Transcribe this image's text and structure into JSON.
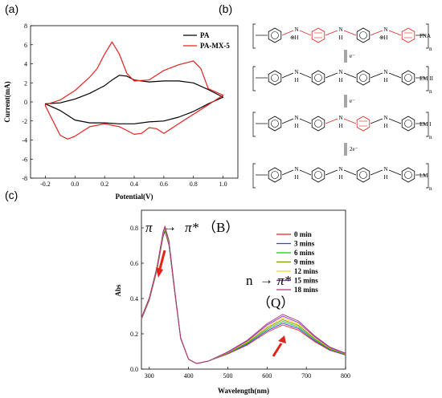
{
  "panel_labels": {
    "a": "(a)",
    "b": "(b)",
    "c": "(c)"
  },
  "colors": {
    "black": "#000000",
    "red": "#e8201e",
    "accent_arrow": "#e3231e"
  },
  "chart_data": [
    {
      "panel": "a",
      "type": "line",
      "xlabel": "Potential(V)",
      "ylabel": "Current(mA)",
      "xlim": [
        -0.3,
        1.1
      ],
      "ylim": [
        -8,
        8
      ],
      "xticks": [
        -0.2,
        0.0,
        0.2,
        0.4,
        0.6,
        0.8,
        1.0
      ],
      "xticklabels": [
        "-0.2",
        "0.0",
        "0.2",
        "0.4",
        "0.6",
        "0.8",
        "1.0"
      ],
      "yticks": [
        -8,
        -6,
        -4,
        -2,
        0,
        2,
        4,
        6,
        8
      ],
      "yticklabels": [
        "-8",
        "-6",
        "-4",
        "-2",
        "0",
        "2",
        "4",
        "6",
        "8"
      ],
      "legend_position": "top-right",
      "series": [
        {
          "name": "PA",
          "color": "#000000",
          "x": [
            -0.2,
            -0.1,
            0.0,
            0.1,
            0.2,
            0.25,
            0.3,
            0.35,
            0.4,
            0.5,
            0.6,
            0.7,
            0.8,
            0.9,
            1.0,
            0.9,
            0.8,
            0.7,
            0.6,
            0.5,
            0.4,
            0.3,
            0.2,
            0.1,
            0.0,
            -0.1,
            -0.2
          ],
          "y": [
            -0.2,
            -0.1,
            0.3,
            0.9,
            1.7,
            2.3,
            2.8,
            2.7,
            2.3,
            2.1,
            2.2,
            2.2,
            2.0,
            1.3,
            0.5,
            -0.2,
            -1.0,
            -1.6,
            -2.0,
            -2.1,
            -2.3,
            -2.3,
            -2.2,
            -2.2,
            -1.9,
            -0.9,
            -0.2
          ]
        },
        {
          "name": "PA-MX-5",
          "color": "#e8201e",
          "x": [
            -0.2,
            -0.1,
            0.0,
            0.1,
            0.15,
            0.2,
            0.25,
            0.3,
            0.35,
            0.4,
            0.5,
            0.6,
            0.7,
            0.75,
            0.8,
            0.85,
            0.9,
            1.0,
            0.9,
            0.8,
            0.7,
            0.65,
            0.6,
            0.55,
            0.5,
            0.45,
            0.4,
            0.3,
            0.2,
            0.1,
            0.0,
            -0.05,
            -0.1,
            -0.2
          ],
          "y": [
            -0.3,
            0.2,
            1.2,
            2.6,
            3.5,
            5.0,
            6.3,
            5.0,
            3.0,
            2.2,
            2.3,
            3.3,
            3.9,
            4.1,
            4.3,
            3.5,
            1.4,
            0.7,
            -0.3,
            -1.3,
            -2.3,
            -2.8,
            -3.3,
            -2.8,
            -2.7,
            -3.3,
            -3.4,
            -2.6,
            -2.3,
            -2.6,
            -3.6,
            -3.9,
            -3.5,
            -0.4
          ]
        }
      ]
    },
    {
      "panel": "c",
      "type": "line",
      "xlabel": "Wavelength(nm)",
      "ylabel": "Abs",
      "xlim": [
        280,
        800
      ],
      "ylim": [
        0.0,
        0.9
      ],
      "xticks": [
        300,
        400,
        500,
        600,
        700,
        800
      ],
      "xticklabels": [
        "300",
        "400",
        "500",
        "600",
        "700",
        "800"
      ],
      "yticks": [
        0.0,
        0.2,
        0.4,
        0.6,
        0.8
      ],
      "yticklabels": [
        "0.0",
        "0.2",
        "0.4",
        "0.6",
        "0.8"
      ],
      "legend_position": "top-right",
      "annotations": {
        "pi_b": {
          "left": "π",
          "arrow": "→",
          "right": "π*",
          "paren": "（B）"
        },
        "n_q": {
          "left": "n",
          "arrow": "→",
          "right": "π*",
          "paren": "（Q）"
        }
      },
      "series": [
        {
          "name": "0 min",
          "color": "#e8201e",
          "peak1": 0.78,
          "peak2": 0.25
        },
        {
          "name": "3 mins",
          "color": "#3a3aff",
          "peak1": 0.785,
          "peak2": 0.26
        },
        {
          "name": "6 mins",
          "color": "#15c515",
          "peak1": 0.79,
          "peak2": 0.27
        },
        {
          "name": "9 mins",
          "color": "#8b8b00",
          "peak1": 0.795,
          "peak2": 0.28
        },
        {
          "name": "12 mins",
          "color": "#e8d81a",
          "peak1": 0.8,
          "peak2": 0.29
        },
        {
          "name": "15 mins",
          "color": "#8a2be2",
          "peak1": 0.805,
          "peak2": 0.3
        },
        {
          "name": "18 mins",
          "color": "#b0307a",
          "peak1": 0.81,
          "peak2": 0.31
        }
      ],
      "shape": {
        "x": [
          280,
          300,
          320,
          335,
          340,
          350,
          365,
          380,
          400,
          420,
          450,
          500,
          550,
          600,
          640,
          680,
          720,
          760,
          800
        ],
        "base": [
          0.36,
          0.5,
          0.72,
          0.96,
          1.0,
          0.9,
          0.55,
          0.22,
          0.07,
          0.04,
          0.04,
          0.06,
          0.1,
          0.14,
          0.16,
          0.13,
          0.08,
          0.05,
          0.03
        ],
        "peak2_idx": [
          11,
          12,
          13,
          14,
          15,
          16,
          17,
          18
        ],
        "peak2_w": [
          0.2,
          0.45,
          0.8,
          1.0,
          0.86,
          0.55,
          0.3,
          0.17
        ]
      }
    }
  ],
  "structures": {
    "rows": [
      {
        "label": "PNA"
      },
      {
        "label": "EM II"
      },
      {
        "label": "EM I"
      },
      {
        "label": "LM"
      }
    ],
    "arrows": [
      "e⁻",
      "e⁻",
      "2e⁻"
    ],
    "atom_N": "N",
    "atom_H": "H",
    "atom_NH": "NH",
    "subscript": "n",
    "plus": "⊕"
  }
}
